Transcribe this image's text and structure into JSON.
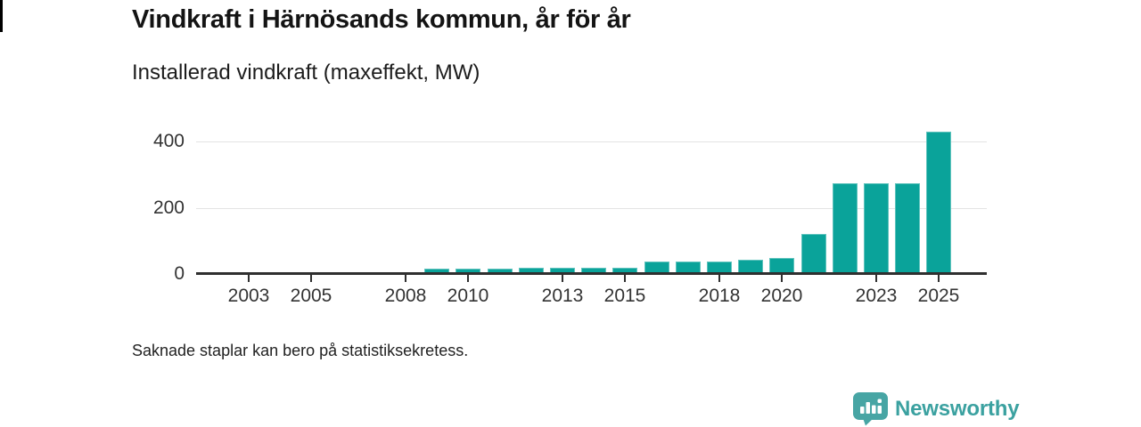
{
  "header": {
    "title_note": "see chart_data.title"
  },
  "branding": {
    "logo_text": "Newsworthy",
    "logo_icon": "newsworthy-speech-bubble-bar-chart-icon",
    "brand_text_color": "#3ba1a0",
    "brand_icon_color": "#47a5a4"
  },
  "chart_data": {
    "type": "bar",
    "title": "Vindkraft i Härnösands kommun, år för år",
    "subtitle": "Installerad vindkraft (maxeffekt, MW)",
    "note": "Saknade staplar kan bero på statistiksekretess.",
    "xlabel": "",
    "ylabel": "Installerad vindkraft (maxeffekt, MW)",
    "unit": "MW",
    "bar_color": "#0aa39a",
    "grid": true,
    "legend_position": "none",
    "ylim": [
      0,
      455
    ],
    "y_ticks": [
      0,
      200,
      400
    ],
    "x_ticks": [
      2003,
      2005,
      2008,
      2010,
      2013,
      2015,
      2018,
      2020,
      2023,
      2025
    ],
    "categories": [
      2002,
      2003,
      2004,
      2005,
      2006,
      2007,
      2008,
      2009,
      2010,
      2011,
      2012,
      2013,
      2014,
      2015,
      2016,
      2017,
      2018,
      2019,
      2020,
      2021,
      2022,
      2023,
      2024,
      2025
    ],
    "values": [
      null,
      null,
      null,
      null,
      null,
      null,
      null,
      15,
      15,
      15,
      20,
      19,
      20,
      19,
      38,
      37,
      37,
      43,
      48,
      120,
      275,
      275,
      275,
      430
    ],
    "missing_values_reason": "statistiksekretess"
  }
}
